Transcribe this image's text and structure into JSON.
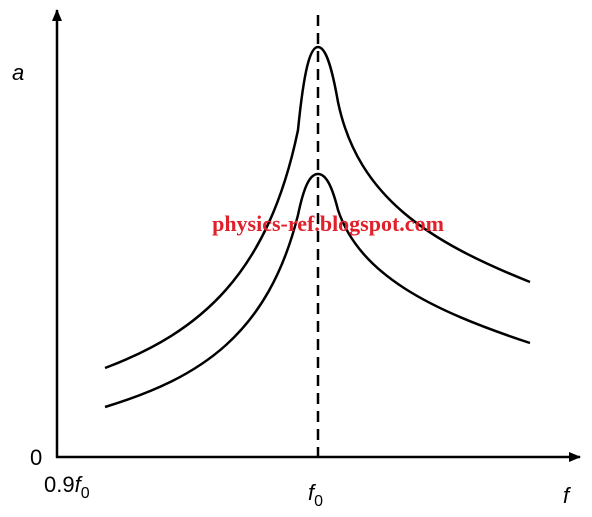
{
  "axes": {
    "y_label": "a",
    "origin_label": "0",
    "x_start": {
      "coefficient": "0.9",
      "symbol": "f",
      "subscript": "0"
    },
    "x_mark": {
      "symbol": "f",
      "subscript": "0"
    },
    "x_label": "f"
  },
  "watermark": "physics-ref.blogspot.com"
}
